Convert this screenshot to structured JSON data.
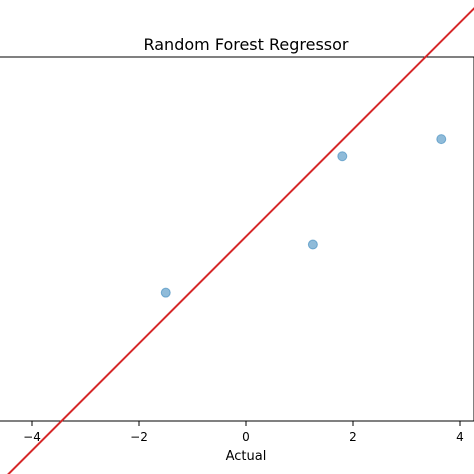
{
  "chart_data": {
    "type": "scatter",
    "title": "Random Forest Regressor",
    "xlabel": "Actual",
    "ylabel": "",
    "xlim": [
      -4.6,
      4.3
    ],
    "xticks": [
      -4,
      -2,
      0,
      2,
      4
    ],
    "xtick_labels": [
      "−4",
      "−2",
      "0",
      "2",
      "4"
    ],
    "points": [
      {
        "x": -1.5,
        "y": -1.05
      },
      {
        "x": 1.25,
        "y": -0.15
      },
      {
        "x": 1.8,
        "y": 1.5
      },
      {
        "x": 3.65,
        "y": 1.82
      }
    ],
    "reference_line": {
      "from": [
        -4.6,
        -4.6
      ],
      "to": [
        4.3,
        4.3
      ]
    },
    "colors": {
      "points": "#1f77b4",
      "line": "#d62728",
      "axes": "#000000"
    },
    "grid": false
  }
}
